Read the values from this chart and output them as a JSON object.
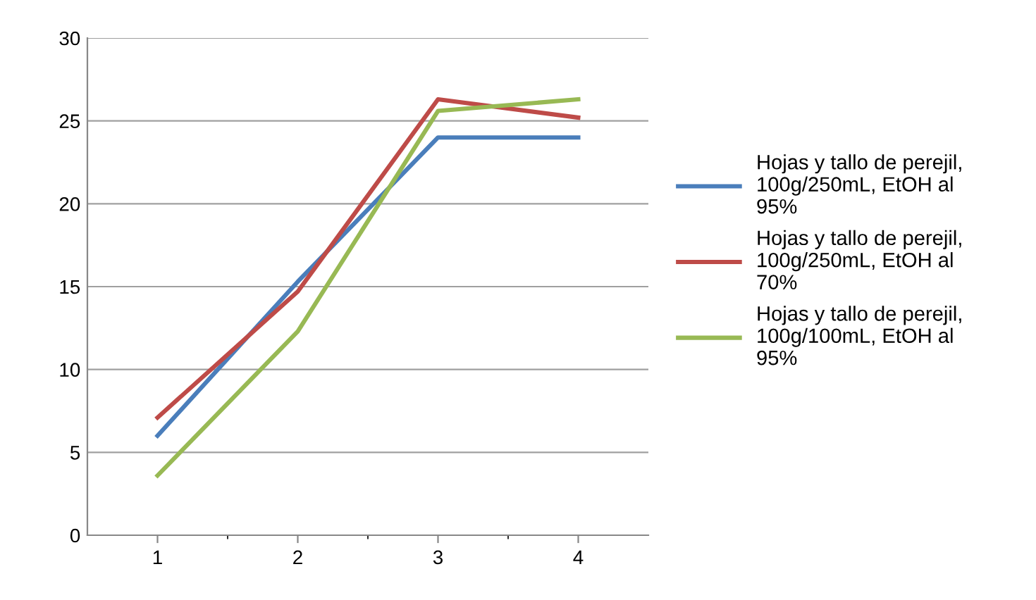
{
  "chart_data": {
    "type": "line",
    "categories": [
      "1",
      "2",
      "3",
      "4"
    ],
    "series": [
      {
        "name": "Hojas y tallo de perejil,\n100g/250mL, EtOH al\n95%",
        "color": "#4a7ebb",
        "values": [
          6,
          15.3,
          24,
          24
        ]
      },
      {
        "name": "Hojas y tallo de perejil,\n100g/250mL, EtOH al\n70%",
        "color": "#be4b48",
        "values": [
          7.1,
          14.7,
          26.3,
          25.2
        ]
      },
      {
        "name": "Hojas y tallo de perejil,\n100g/100mL, EtOH al\n95%",
        "color": "#98b954",
        "values": [
          3.6,
          12.3,
          25.6,
          26.3
        ]
      }
    ],
    "ylim": [
      0,
      30
    ],
    "yticks": [
      0,
      5,
      10,
      15,
      20,
      25,
      30
    ],
    "grid": "y",
    "legend": "right",
    "marker": "none",
    "line_style": "solid"
  }
}
